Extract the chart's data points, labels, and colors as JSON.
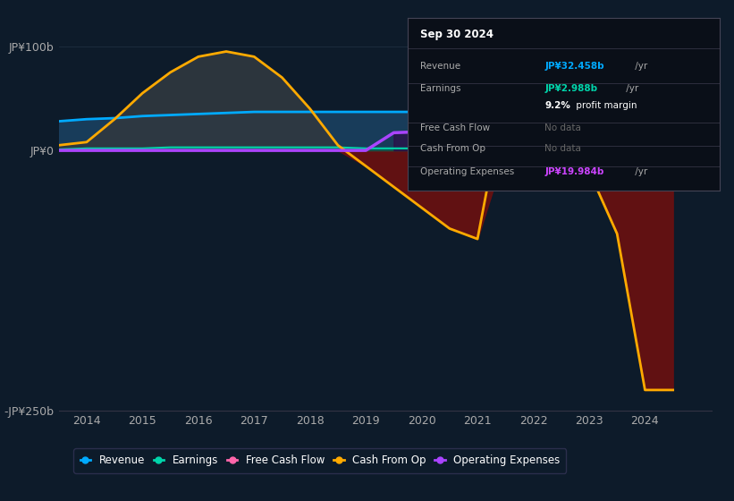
{
  "bg_color": "#0d1b2a",
  "plot_bg_color": "#0d1b2a",
  "title_box_date": "Sep 30 2024",
  "ylim": [
    -250,
    130
  ],
  "xlim": [
    2013.5,
    2025.2
  ],
  "yticks": [
    100,
    0,
    -250
  ],
  "ytick_labels": [
    "JP¥100b",
    "JP¥0",
    "-JP¥250b"
  ],
  "xticks": [
    2014,
    2015,
    2016,
    2017,
    2018,
    2019,
    2020,
    2021,
    2022,
    2023,
    2024
  ],
  "years": [
    2013.5,
    2014.0,
    2014.5,
    2015.0,
    2015.5,
    2016.0,
    2016.5,
    2017.0,
    2017.5,
    2018.0,
    2018.5,
    2019.0,
    2019.5,
    2020.0,
    2020.5,
    2021.0,
    2021.5,
    2022.0,
    2022.5,
    2023.0,
    2023.5,
    2024.0,
    2024.5
  ],
  "revenue": [
    28,
    30,
    31,
    33,
    34,
    35,
    36,
    37,
    37,
    37,
    37,
    37,
    37,
    37,
    38,
    39,
    40,
    39,
    38,
    37,
    36,
    36,
    36
  ],
  "earnings": [
    1,
    2,
    2,
    2,
    3,
    3,
    3,
    3,
    3,
    3,
    3,
    2,
    2,
    2,
    3,
    4,
    5,
    4,
    3,
    2,
    3,
    3,
    3
  ],
  "cash_from_op": [
    5,
    8,
    30,
    55,
    75,
    90,
    95,
    90,
    70,
    40,
    5,
    -15,
    -35,
    -55,
    -75,
    -85,
    55,
    20,
    -5,
    -20,
    -80,
    -230,
    -230
  ],
  "operating_expenses": [
    0,
    0,
    0,
    0,
    0,
    0,
    0,
    0,
    0,
    0,
    0,
    0,
    17,
    18,
    18,
    18,
    18,
    18,
    18,
    18,
    18,
    18,
    18
  ],
  "revenue_color": "#00aaff",
  "earnings_color": "#00d4aa",
  "free_cash_flow_color": "#ff66aa",
  "cash_from_op_color": "#ffaa00",
  "operating_expenses_color": "#aa44ff",
  "legend_items": [
    {
      "label": "Revenue",
      "color": "#00aaff"
    },
    {
      "label": "Earnings",
      "color": "#00d4aa"
    },
    {
      "label": "Free Cash Flow",
      "color": "#ff66aa"
    },
    {
      "label": "Cash From Op",
      "color": "#ffaa00"
    },
    {
      "label": "Operating Expenses",
      "color": "#aa44ff"
    }
  ]
}
